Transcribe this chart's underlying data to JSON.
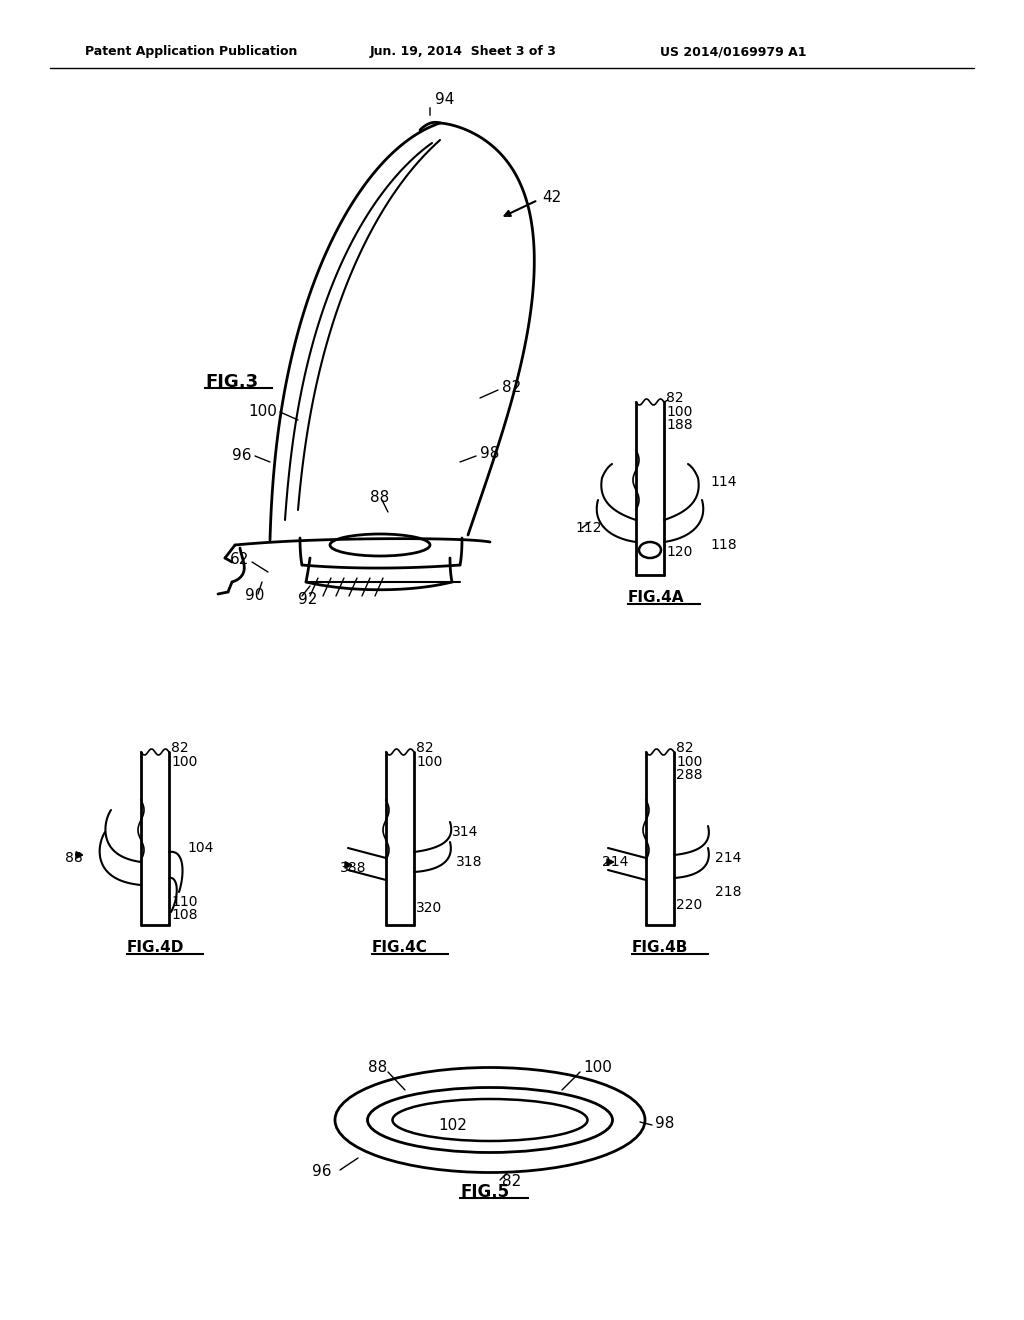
{
  "bg_color": "#ffffff",
  "line_color": "#000000",
  "header_left": "Patent Application Publication",
  "header_mid": "Jun. 19, 2014  Sheet 3 of 3",
  "header_right": "US 2014/0169979 A1"
}
